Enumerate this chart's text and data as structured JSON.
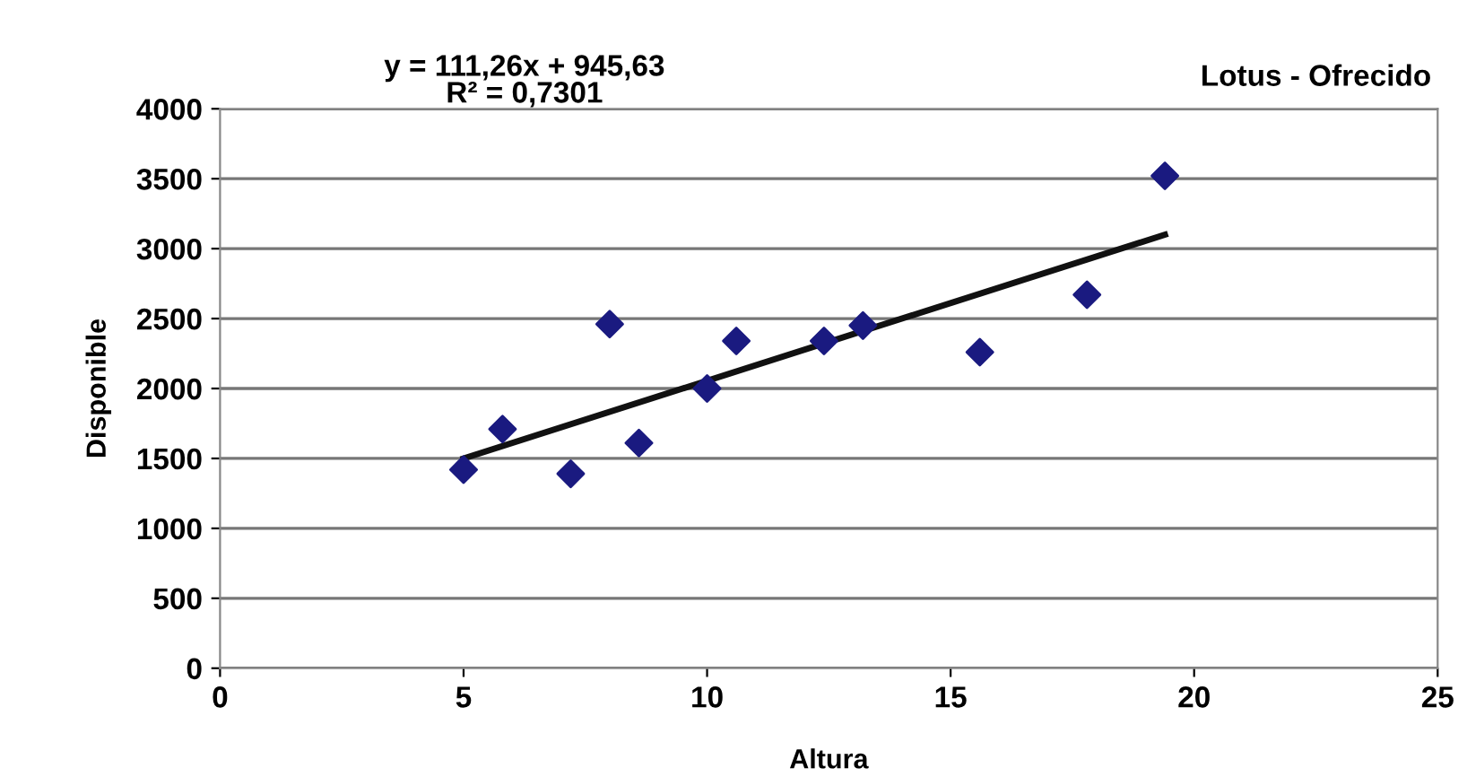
{
  "chart_data": {
    "type": "scatter",
    "title": "Lotus - Ofrecido",
    "xlabel": "Altura",
    "ylabel": "Disponible",
    "annotations": [
      "y = 111,26x + 945,63\nR² = 0,7301"
    ],
    "xlim": [
      0,
      25
    ],
    "xticks": [
      0,
      5,
      10,
      15,
      20,
      25
    ],
    "ylim": [
      0,
      4000
    ],
    "yticks": [
      0,
      500,
      1000,
      1500,
      2000,
      2500,
      3000,
      3500,
      4000
    ],
    "grid": "y",
    "marker": "diamond",
    "legend": false,
    "series": [
      {
        "color": "#1a1a80",
        "x": [
          5,
          5.8,
          7.2,
          8,
          8.6,
          10,
          10.6,
          12.4,
          13.2,
          15.6,
          17.8,
          19.4
        ],
        "values": [
          1420,
          1710,
          1390,
          2460,
          1610,
          2000,
          2340,
          2340,
          2450,
          2260,
          2670,
          3520
        ]
      },
      {
        "type": "line",
        "color": "#111111",
        "marker": "none",
        "line_style": "solid",
        "x": [
          5,
          19.4
        ],
        "values": [
          1500,
          3100
        ]
      }
    ]
  }
}
